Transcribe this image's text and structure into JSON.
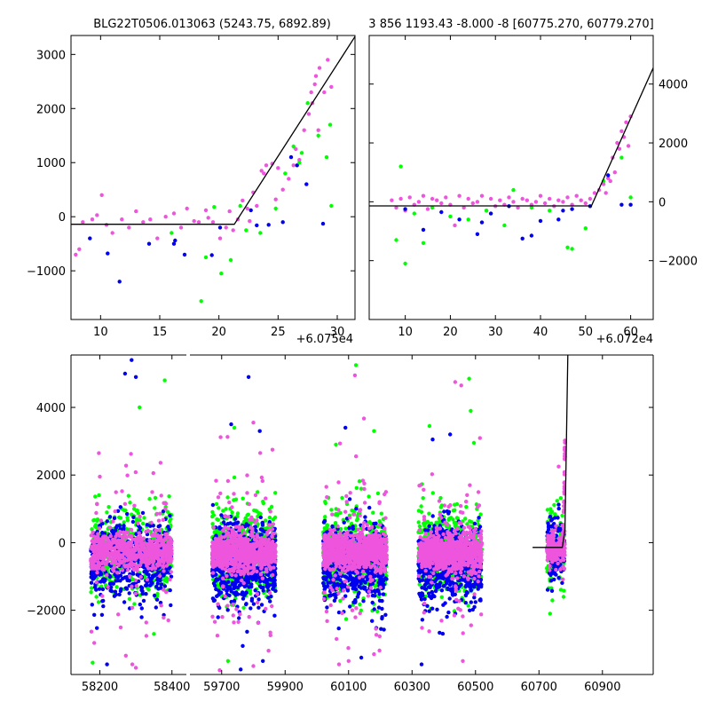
{
  "colors": {
    "green": "#00ff00",
    "blue": "#0000ee",
    "pink": "#ee55dd",
    "model": "#000000"
  },
  "chart_data": [
    {
      "type": "scatter",
      "title": "BLG22T0506.013063 (5243.75, 6892.89)",
      "x_offset_label": "+6.075e4",
      "xlim": [
        7.5,
        31.5
      ],
      "ylim": [
        -1900,
        3350
      ],
      "xticks": [
        10,
        15,
        20,
        25,
        30
      ],
      "yticks": [
        -1000,
        0,
        1000,
        2000,
        3000
      ],
      "ytick_labels": [
        "−1000",
        "0",
        "1000",
        "2000",
        "3000"
      ],
      "ytick_side": "left",
      "model_line": {
        "x": [
          7.5,
          21.3,
          31.5
        ],
        "y": [
          -140,
          -140,
          3330
        ]
      },
      "series": [
        {
          "color_key": "pink",
          "x": [
            7.9,
            8.2,
            8.5,
            9.3,
            9.7,
            10.1,
            10.5,
            11.0,
            11.8,
            12.4,
            13.0,
            13.6,
            14.2,
            14.8,
            15.5,
            16.2,
            16.8,
            17.3,
            17.9,
            18.3,
            18.9,
            19.5,
            20.1,
            20.6,
            21.2,
            21.6,
            22.0,
            22.4,
            22.9,
            23.2,
            23.6,
            24.0,
            24.5,
            25.0,
            25.4,
            25.9,
            26.3,
            26.8,
            27.2,
            27.6,
            27.9,
            28.2,
            28.5,
            28.9,
            29.2,
            29.5,
            23.8,
            24.8,
            26.5,
            27.8,
            28.1,
            28.4,
            20.9,
            22.6,
            19.1
          ],
          "y": [
            -700,
            -600,
            -100,
            -50,
            30,
            400,
            -150,
            -300,
            -50,
            -200,
            100,
            -100,
            -50,
            -400,
            0,
            60,
            -200,
            150,
            -80,
            -100,
            120,
            -100,
            -400,
            -200,
            -250,
            -50,
            300,
            150,
            450,
            200,
            850,
            950,
            980,
            900,
            500,
            700,
            950,
            1050,
            1600,
            1900,
            2100,
            2600,
            2750,
            2300,
            2900,
            2400,
            800,
            320,
            1250,
            2300,
            2450,
            1600,
            100,
            -80,
            -20
          ]
        },
        {
          "color_key": "blue",
          "x": [
            9.1,
            10.6,
            11.6,
            14.1,
            16.3,
            17.1,
            19.4,
            20.1,
            22.7,
            23.2,
            25.4,
            26.1,
            26.6,
            27.4,
            28.8,
            16.2,
            24.2
          ],
          "y": [
            -400,
            -680,
            -1200,
            -500,
            -440,
            -700,
            -710,
            -200,
            120,
            -160,
            -100,
            1100,
            950,
            600,
            -130,
            -500,
            -150
          ]
        },
        {
          "color_key": "green",
          "x": [
            18.5,
            20.2,
            21.0,
            22.3,
            24.8,
            25.6,
            26.3,
            27.0,
            27.5,
            28.4,
            29.1,
            29.4,
            29.5,
            21.8,
            23.5,
            18.9,
            19.6,
            26.8,
            16.0
          ],
          "y": [
            -1560,
            -1050,
            -800,
            -250,
            150,
            800,
            1300,
            1180,
            2100,
            1500,
            1100,
            1700,
            200,
            200,
            -300,
            -750,
            180,
            1000,
            -300
          ]
        }
      ]
    },
    {
      "type": "scatter",
      "title": "3 856 1193.43 -8.000 -8 [60775.270, 60779.270]",
      "x_offset_label": "+6.072e4",
      "xlim": [
        2,
        65
      ],
      "ylim": [
        -4000,
        5650
      ],
      "xticks": [
        10,
        20,
        30,
        40,
        50,
        60
      ],
      "yticks": [
        -2000,
        0,
        2000,
        4000
      ],
      "ytick_labels": [
        "−2000",
        "0",
        "2000",
        "4000"
      ],
      "ytick_side": "right",
      "model_line": {
        "x": [
          2,
          51.3,
          65
        ],
        "y": [
          -140,
          -140,
          4550
        ]
      },
      "series": [
        {
          "color_key": "pink",
          "x": [
            7,
            8,
            9,
            10,
            11,
            12,
            13,
            14,
            15,
            16,
            17,
            18,
            19,
            20,
            21,
            22,
            23,
            24,
            25,
            26,
            27,
            28,
            29,
            30,
            31,
            32,
            33,
            34,
            35,
            36,
            37,
            38,
            39,
            40,
            41,
            42,
            43,
            44,
            45,
            46,
            47,
            48,
            49,
            50,
            51,
            52,
            53,
            54,
            55,
            56,
            57,
            58,
            59,
            60,
            57.5,
            58.5,
            59.5,
            56.5,
            55.5,
            54.5
          ],
          "y": [
            50,
            -200,
            100,
            -300,
            150,
            -100,
            0,
            200,
            -250,
            100,
            50,
            -50,
            150,
            -100,
            -800,
            200,
            -200,
            100,
            -50,
            0,
            200,
            -300,
            100,
            -150,
            50,
            -100,
            150,
            0,
            -200,
            100,
            50,
            -100,
            0,
            200,
            -50,
            100,
            -150,
            50,
            0,
            150,
            -100,
            200,
            50,
            -50,
            100,
            300,
            400,
            600,
            800,
            1500,
            2000,
            2400,
            2700,
            2900,
            1800,
            2200,
            1900,
            1000,
            700,
            300
          ]
        },
        {
          "color_key": "blue",
          "x": [
            10,
            14,
            18,
            22,
            26,
            29,
            33,
            36,
            40,
            44,
            47,
            51,
            55,
            58,
            60,
            27,
            38,
            45
          ],
          "y": [
            -250,
            -950,
            -350,
            -600,
            -1100,
            -400,
            -150,
            -1250,
            -650,
            -600,
            -250,
            -150,
            900,
            -100,
            -100,
            -700,
            -1150,
            -300
          ]
        },
        {
          "color_key": "green",
          "x": [
            8,
            9,
            10,
            12,
            14,
            16,
            20,
            24,
            28,
            34,
            38,
            42,
            46,
            50,
            54,
            58,
            60,
            47,
            32
          ],
          "y": [
            -1300,
            1200,
            -2100,
            -400,
            -1400,
            -200,
            -500,
            -600,
            -300,
            400,
            -200,
            -300,
            -1550,
            -900,
            700,
            1500,
            150,
            -1600,
            -800
          ]
        }
      ]
    },
    {
      "type": "scatter",
      "title": "",
      "xlim": [
        58120,
        58440,
        59600,
        61060
      ],
      "xticks": [
        58200,
        58400,
        59700,
        59900,
        60100,
        60300,
        60500,
        60700,
        60900
      ],
      "ylim": [
        -3900,
        5550
      ],
      "yticks": [
        -2000,
        0,
        2000,
        4000
      ],
      "ytick_labels": [
        "−2000",
        "0",
        "2000",
        "4000"
      ],
      "seasons": [
        {
          "x": [
            58175,
            58400
          ],
          "center": -250,
          "n": 520,
          "outliers": [
            [
              58288,
              5400,
              "blue"
            ],
            [
              58270,
              5000,
              "blue"
            ],
            [
              58300,
              4900,
              "blue"
            ],
            [
              58380,
              4800,
              "green"
            ],
            [
              58310,
              4000,
              "green"
            ],
            [
              58200,
              1950,
              "pink"
            ],
            [
              58290,
              -3600,
              "pink"
            ],
            [
              58180,
              -3550,
              "green"
            ],
            [
              58220,
              -3600,
              "blue"
            ],
            [
              58300,
              -3700,
              "pink"
            ],
            [
              58350,
              -2700,
              "green"
            ],
            [
              58390,
              -2300,
              "pink"
            ]
          ]
        },
        {
          "x": [
            59670,
            59870
          ],
          "center": -300,
          "n": 620,
          "outliers": [
            [
              59785,
              4900,
              "blue"
            ],
            [
              59730,
              3500,
              "blue"
            ],
            [
              59800,
              3550,
              "pink"
            ],
            [
              59740,
              3400,
              "green"
            ],
            [
              59820,
              3300,
              "blue"
            ],
            [
              59860,
              2750,
              "pink"
            ],
            [
              59760,
              -3750,
              "blue"
            ],
            [
              59800,
              -3650,
              "pink"
            ],
            [
              59830,
              -3500,
              "blue"
            ],
            [
              59720,
              -3500,
              "green"
            ]
          ]
        },
        {
          "x": [
            60020,
            60220
          ],
          "center": -280,
          "n": 620,
          "outliers": [
            [
              60123,
              5250,
              "green"
            ],
            [
              60120,
              4950,
              "pink"
            ],
            [
              60090,
              3400,
              "blue"
            ],
            [
              60060,
              2900,
              "green"
            ],
            [
              60180,
              3300,
              "green"
            ],
            [
              60030,
              1650,
              "pink"
            ],
            [
              60100,
              -3500,
              "pink"
            ],
            [
              60140,
              -3400,
              "blue"
            ],
            [
              60070,
              -3600,
              "pink"
            ],
            [
              60180,
              -3300,
              "pink"
            ]
          ]
        },
        {
          "x": [
            60320,
            60520
          ],
          "center": -300,
          "n": 620,
          "outliers": [
            [
              60436,
              4750,
              "pink"
            ],
            [
              60455,
              4650,
              "pink"
            ],
            [
              60480,
              4850,
              "green"
            ],
            [
              60485,
              3900,
              "green"
            ],
            [
              60355,
              3450,
              "green"
            ],
            [
              60420,
              3200,
              "blue"
            ],
            [
              60495,
              2950,
              "green"
            ],
            [
              60365,
              3050,
              "blue"
            ],
            [
              60460,
              -3500,
              "pink"
            ],
            [
              60330,
              -3600,
              "blue"
            ]
          ]
        },
        {
          "x": [
            60725,
            60782
          ],
          "center": -200,
          "n": 130,
          "outliers": [
            [
              60735,
              -2100,
              "green"
            ],
            [
              60762,
              2250,
              "pink"
            ]
          ]
        }
      ],
      "tail": {
        "x": [
          60775,
          60782
        ],
        "y": [
          -1000,
          2900
        ]
      },
      "model_line": {
        "x": [
          60680,
          60773.5,
          60782,
          60791
        ],
        "y": [
          -140,
          -140,
          400,
          5550
        ]
      }
    }
  ]
}
